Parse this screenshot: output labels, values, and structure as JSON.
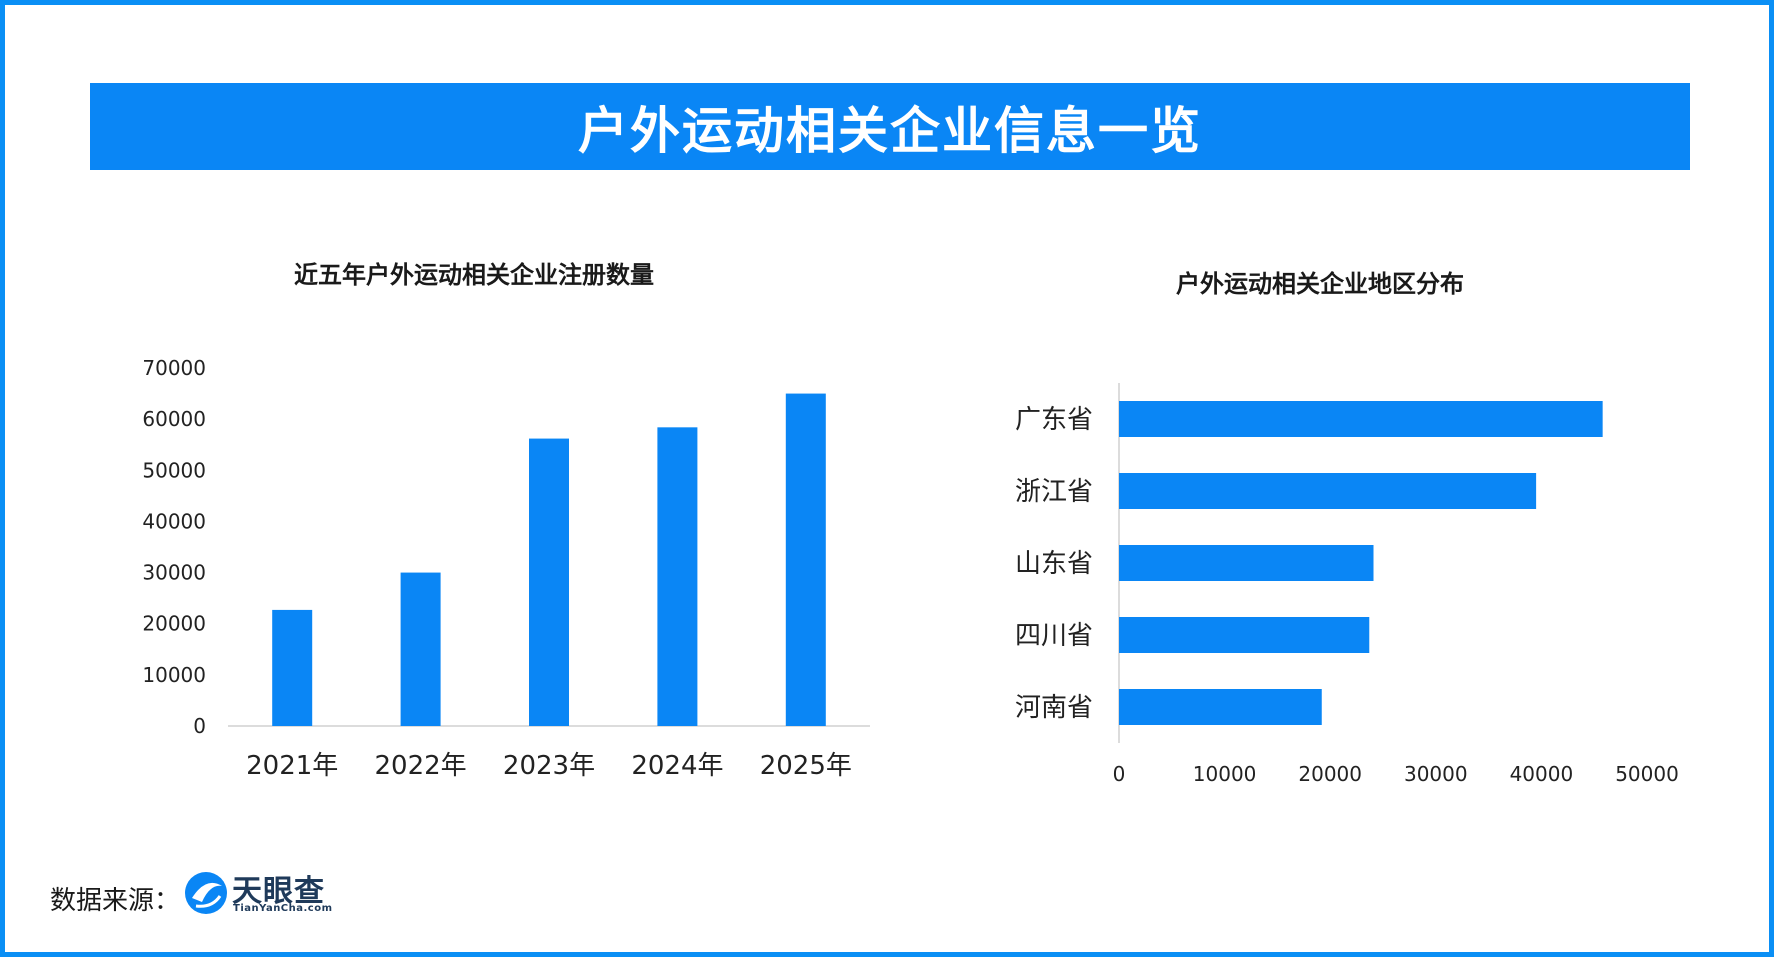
{
  "header": {
    "title": "户外运动相关企业信息一览"
  },
  "source": {
    "label": "数据来源：",
    "brand": "天眼查",
    "brand_sub": "TianYanCha.com"
  },
  "colors": {
    "accent": "#0a86f5",
    "frame": "#0a8ff5",
    "bar": "#0a86f5"
  },
  "chart_data": [
    {
      "type": "bar",
      "title": "近五年户外运动相关企业注册数量",
      "categories": [
        "2021年",
        "2022年",
        "2023年",
        "2024年",
        "2025年"
      ],
      "values": [
        22700,
        30000,
        56200,
        58400,
        65000
      ],
      "ylim": [
        0,
        70000
      ],
      "yticks": [
        "0",
        "10000",
        "20000",
        "30000",
        "40000",
        "50000",
        "60000",
        "70000"
      ],
      "grid": false
    },
    {
      "type": "bar",
      "orientation": "horizontal",
      "title": "户外运动相关企业地区分布",
      "categories": [
        "广东省",
        "浙江省",
        "山东省",
        "四川省",
        "河南省"
      ],
      "values": [
        45800,
        39500,
        24100,
        23700,
        19200
      ],
      "xlim": [
        0,
        50000
      ],
      "xticks": [
        "0",
        "10000",
        "20000",
        "30000",
        "40000",
        "50000"
      ],
      "grid": false
    }
  ]
}
